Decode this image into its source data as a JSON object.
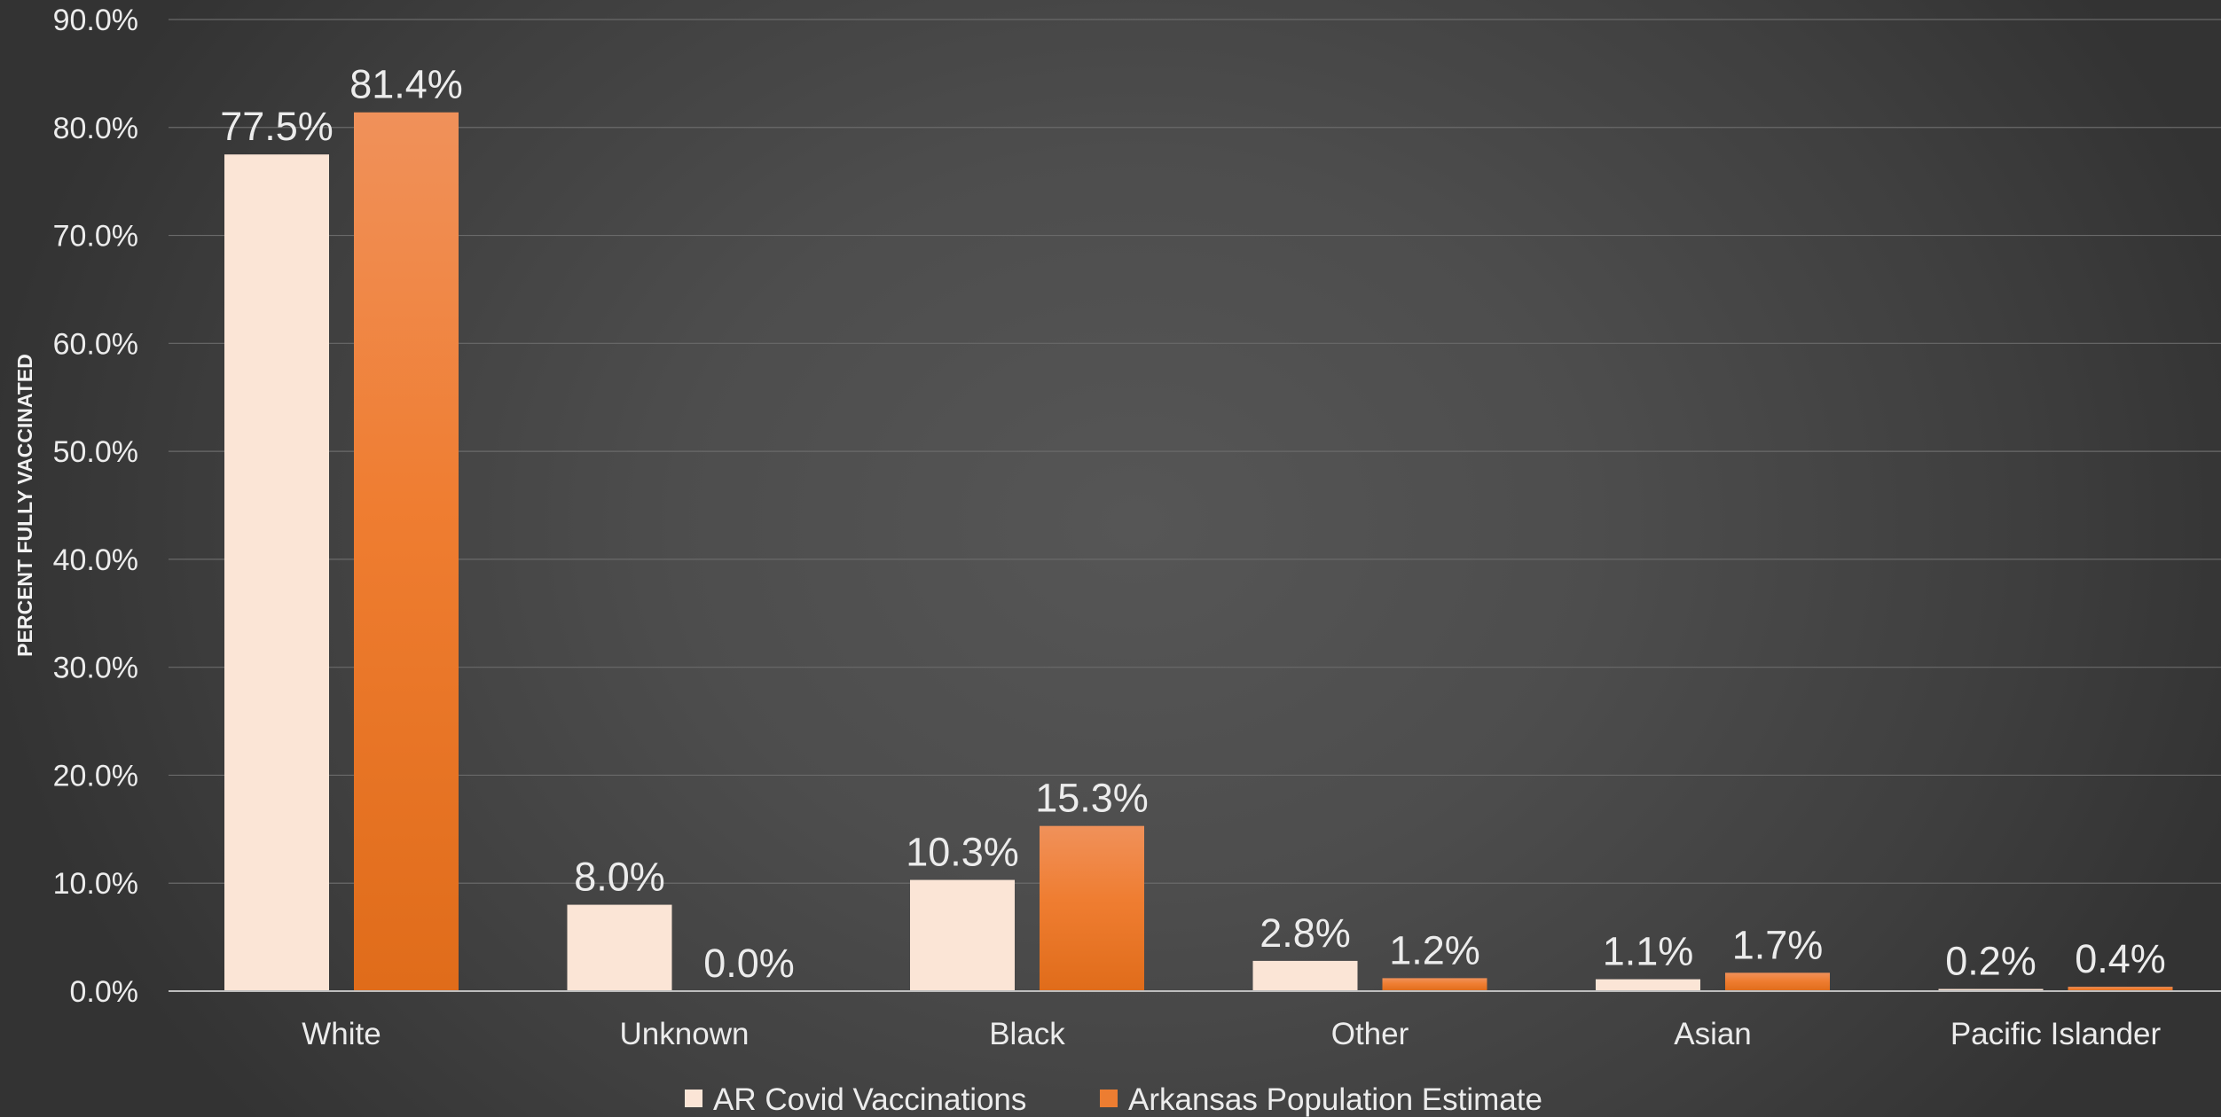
{
  "chart_data": {
    "type": "bar",
    "title": "",
    "xlabel": "",
    "ylabel": "PERCENT FULLY VACCINATED",
    "ylim": [
      0,
      90
    ],
    "y_ticks": [
      0,
      10,
      20,
      30,
      40,
      50,
      60,
      70,
      80,
      90
    ],
    "y_tick_labels": [
      "0.0%",
      "10.0%",
      "20.0%",
      "30.0%",
      "40.0%",
      "50.0%",
      "60.0%",
      "70.0%",
      "80.0%",
      "90.0%"
    ],
    "grid": true,
    "legend_position": "bottom",
    "categories": [
      "White",
      "Unknown",
      "Black",
      "Other",
      "Asian",
      "Pacific Islander"
    ],
    "series": [
      {
        "name": "AR Covid Vaccinations",
        "color": "#fbe5d6",
        "values": [
          77.5,
          8.0,
          10.3,
          2.8,
          1.1,
          0.2
        ],
        "labels": [
          "77.5%",
          "8.0%",
          "10.3%",
          "2.8%",
          "1.1%",
          "0.2%"
        ]
      },
      {
        "name": "Arkansas Population Estimate",
        "color": "#ed7d31",
        "values": [
          81.4,
          0.0,
          15.3,
          1.2,
          1.7,
          0.4
        ],
        "labels": [
          "81.4%",
          "0.0%",
          "15.3%",
          "1.2%",
          "1.7%",
          "0.4%"
        ]
      }
    ]
  }
}
